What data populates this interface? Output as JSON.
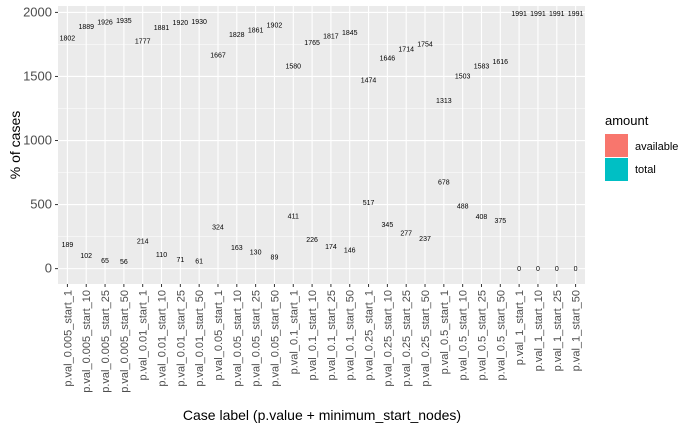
{
  "chart_data": {
    "type": "bar",
    "xlabel": "Case label (p.value + minimum_start_nodes)",
    "ylabel": "% of cases",
    "ylim": [
      -120,
      2050
    ],
    "yticks": [
      0,
      500,
      1000,
      1500,
      2000
    ],
    "categories": [
      "p.val_0.005_start_1",
      "p.val_0.005_start_10",
      "p.val_0.005_start_25",
      "p.val_0.005_start_50",
      "p.val_0.01_start_1",
      "p.val_0.01_start_10",
      "p.val_0.01_start_25",
      "p.val_0.01_start_50",
      "p.val_0.05_start_1",
      "p.val_0.05_start_10",
      "p.val_0.05_start_25",
      "p.val_0.05_start_50",
      "p.val_0.1_start_1",
      "p.val_0.1_start_10",
      "p.val_0.1_start_25",
      "p.val_0.1_start_50",
      "p.val_0.25_start_1",
      "p.val_0.25_start_10",
      "p.val_0.25_start_25",
      "p.val_0.25_start_50",
      "p.val_0.5_start_1",
      "p.val_0.5_start_10",
      "p.val_0.5_start_25",
      "p.val_0.5_start_50",
      "p.val_1_start_1",
      "p.val_1_start_10",
      "p.val_1_start_25",
      "p.val_1_start_50"
    ],
    "series": [
      {
        "name": "available",
        "color": "#F8766D",
        "values": [
          1802,
          1889,
          1926,
          1935,
          1777,
          1881,
          1920,
          1930,
          1667,
          1828,
          1861,
          1902,
          1580,
          1765,
          1817,
          1845,
          1474,
          1646,
          1714,
          1754,
          1313,
          1503,
          1583,
          1616,
          1991,
          1991,
          1991,
          1991
        ]
      },
      {
        "name": "total",
        "color": "#00BFC4",
        "values": [
          189,
          102,
          65,
          56,
          214,
          110,
          71,
          61,
          324,
          163,
          130,
          89,
          411,
          226,
          174,
          146,
          517,
          345,
          277,
          237,
          678,
          488,
          408,
          375,
          0,
          0,
          0,
          0
        ]
      }
    ],
    "legend": {
      "title": "amount",
      "position": "right"
    },
    "grid": true
  }
}
